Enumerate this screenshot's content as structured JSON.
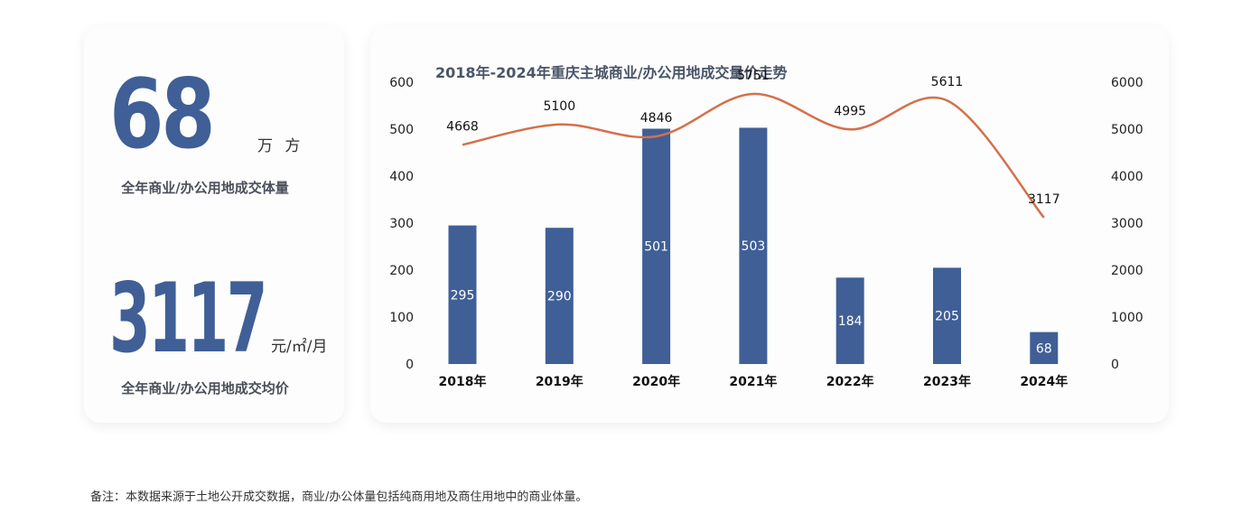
{
  "summary": {
    "volume_value": "68",
    "volume_unit": "万 方",
    "volume_label": "全年商业/办公用地成交体量",
    "price_value": "3117",
    "price_unit": "元/㎡/月",
    "price_label": "全年商业/办公用地成交均价"
  },
  "footnote": "备注：本数据来源于土地公开成交数据，商业/办公体量包括纯商用地及商住用地中的商业体量。",
  "colors": {
    "bar": "#3f5f96",
    "line": "#d4704a",
    "number": "#3f5f96"
  },
  "chart_data": {
    "type": "bar",
    "title": "2018年-2024年重庆主城商业/办公用地成交量价走势",
    "categories": [
      "2018年",
      "2019年",
      "2020年",
      "2021年",
      "2022年",
      "2023年",
      "2024年"
    ],
    "series": [
      {
        "type": "bar",
        "axis": "left",
        "values": [
          295,
          290,
          501,
          503,
          184,
          205,
          68
        ]
      },
      {
        "type": "line",
        "axis": "right",
        "smooth": true,
        "values": [
          4668,
          5100,
          4846,
          5751,
          4995,
          5611,
          3117
        ]
      }
    ],
    "ylim_left": [
      0,
      600
    ],
    "yticks_left": [
      "0",
      "100",
      "200",
      "300",
      "400",
      "500",
      "600"
    ],
    "ylim_right": [
      0,
      6000
    ],
    "yticks_right": [
      "0",
      "1000",
      "2000",
      "3000",
      "4000",
      "5000",
      "6000"
    ],
    "grid": false,
    "legend": "none"
  }
}
